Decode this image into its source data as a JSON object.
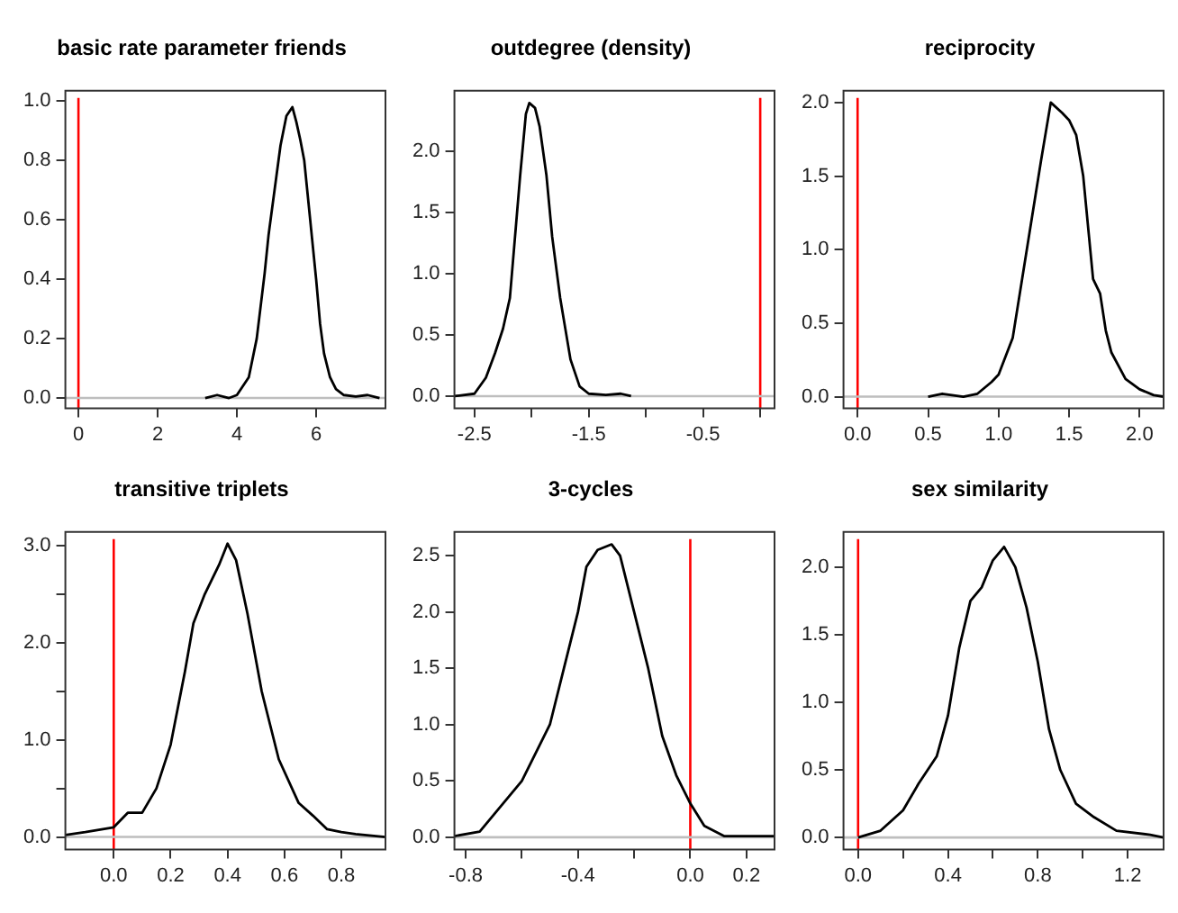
{
  "chart_data": [
    {
      "type": "line",
      "title": "basic rate parameter friends",
      "color": "#000000",
      "x": [
        3.2,
        3.5,
        3.8,
        4.0,
        4.3,
        4.5,
        4.7,
        4.8,
        5.0,
        5.1,
        5.25,
        5.4,
        5.5,
        5.6,
        5.7,
        5.85,
        6.0,
        6.1,
        6.2,
        6.35,
        6.5,
        6.7,
        7.0,
        7.3,
        7.6
      ],
      "values": [
        0,
        0.01,
        0,
        0.01,
        0.07,
        0.2,
        0.42,
        0.55,
        0.75,
        0.85,
        0.95,
        0.98,
        0.93,
        0.87,
        0.8,
        0.6,
        0.4,
        0.25,
        0.15,
        0.07,
        0.03,
        0.01,
        0.005,
        0.01,
        0
      ],
      "xlim": [
        -0.33,
        7.75
      ],
      "ylim": [
        -0.035,
        1.035
      ],
      "xticks": [
        0,
        2,
        4,
        6
      ],
      "yticks": [
        {
          "value": 0,
          "label": "0.0"
        },
        0.2,
        0.4,
        0.6,
        0.8,
        {
          "value": 1,
          "label": "1.0"
        }
      ],
      "ref_lines": [
        {
          "axis": "x",
          "value": 0,
          "color": "#ff0000"
        },
        {
          "axis": "y",
          "value": 0,
          "color": "#bebebe"
        }
      ]
    },
    {
      "type": "line",
      "title": "outdegree (density)",
      "color": "#000000",
      "x": [
        -2.675,
        -2.5,
        -2.4,
        -2.32,
        -2.25,
        -2.19,
        -2.1,
        -2.05,
        -2.02,
        -1.97,
        -1.93,
        -1.87,
        -1.82,
        -1.75,
        -1.66,
        -1.58,
        -1.5,
        -1.35,
        -1.22,
        -1.13
      ],
      "values": [
        0,
        0.02,
        0.15,
        0.35,
        0.55,
        0.8,
        1.8,
        2.3,
        2.39,
        2.35,
        2.2,
        1.8,
        1.3,
        0.8,
        0.3,
        0.08,
        0.02,
        0.01,
        0.02,
        0
      ],
      "xlim": [
        -2.675,
        0.125
      ],
      "ylim": [
        -0.1,
        2.49
      ],
      "xticks": [
        -2.5,
        {
          "value": -2,
          "label": null
        },
        -1.5,
        {
          "value": -1,
          "label": null
        },
        -0.5,
        {
          "value": 0,
          "label": null
        }
      ],
      "yticks": [
        {
          "value": 0,
          "label": "0.0"
        },
        0.5,
        {
          "value": 1,
          "label": "1.0"
        },
        1.5,
        {
          "value": 2,
          "label": "2.0"
        }
      ],
      "ref_lines": [
        {
          "axis": "x",
          "value": 0,
          "color": "#ff0000"
        },
        {
          "axis": "y",
          "value": 0,
          "color": "#bebebe"
        }
      ]
    },
    {
      "type": "line",
      "title": "reciprocity",
      "color": "#000000",
      "x": [
        0.5,
        0.6,
        0.75,
        0.85,
        0.95,
        1.0,
        1.1,
        1.2,
        1.3,
        1.37,
        1.45,
        1.5,
        1.55,
        1.6,
        1.64,
        1.67,
        1.72,
        1.76,
        1.8,
        1.9,
        2.0,
        2.1,
        2.17
      ],
      "values": [
        0,
        0.02,
        0,
        0.02,
        0.1,
        0.15,
        0.4,
        1.0,
        1.6,
        2.0,
        1.93,
        1.88,
        1.78,
        1.5,
        1.1,
        0.8,
        0.7,
        0.45,
        0.3,
        0.12,
        0.05,
        0.01,
        0
      ],
      "xlim": [
        -0.1,
        2.17
      ],
      "ylim": [
        -0.08,
        2.08
      ],
      "xticks": [
        {
          "value": 0,
          "label": "0.0"
        },
        0.5,
        {
          "value": 1,
          "label": "1.0"
        },
        1.5,
        {
          "value": 2,
          "label": "2.0"
        }
      ],
      "yticks": [
        {
          "value": 0,
          "label": "0.0"
        },
        0.5,
        {
          "value": 1,
          "label": "1.0"
        },
        1.5,
        {
          "value": 2,
          "label": "2.0"
        }
      ],
      "ref_lines": [
        {
          "axis": "x",
          "value": 0,
          "color": "#ff0000"
        },
        {
          "axis": "y",
          "value": 0,
          "color": "#bebebe"
        }
      ]
    },
    {
      "type": "line",
      "title": "transitive triplets",
      "color": "#000000",
      "x": [
        -0.17,
        -0.1,
        0.0,
        0.05,
        0.1,
        0.15,
        0.2,
        0.25,
        0.28,
        0.32,
        0.37,
        0.4,
        0.43,
        0.47,
        0.52,
        0.58,
        0.65,
        0.7,
        0.75,
        0.8,
        0.85,
        0.955
      ],
      "values": [
        0.02,
        0.05,
        0.1,
        0.25,
        0.25,
        0.5,
        0.95,
        1.7,
        2.2,
        2.5,
        2.8,
        3.02,
        2.85,
        2.3,
        1.5,
        0.8,
        0.35,
        0.22,
        0.08,
        0.05,
        0.03,
        0
      ],
      "xlim": [
        -0.17,
        0.955
      ],
      "ylim": [
        -0.13,
        3.14
      ],
      "xticks": [
        {
          "value": 0,
          "label": "0.0"
        },
        0.2,
        0.4,
        0.6,
        0.8
      ],
      "yticks": [
        {
          "value": 0,
          "label": "0.0"
        },
        {
          "value": 0.5,
          "label": null
        },
        {
          "value": 1,
          "label": "1.0"
        },
        {
          "value": 1.5,
          "label": null
        },
        {
          "value": 2,
          "label": "2.0"
        },
        {
          "value": 2.5,
          "label": null
        },
        {
          "value": 3,
          "label": "3.0"
        }
      ],
      "ref_lines": [
        {
          "axis": "x",
          "value": 0,
          "color": "#ff0000"
        },
        {
          "axis": "y",
          "value": 0,
          "color": "#bebebe"
        }
      ]
    },
    {
      "type": "line",
      "title": "3-cycles",
      "color": "#000000",
      "x": [
        -0.84,
        -0.75,
        -0.7,
        -0.6,
        -0.5,
        -0.45,
        -0.4,
        -0.37,
        -0.33,
        -0.28,
        -0.25,
        -0.2,
        -0.15,
        -0.1,
        -0.05,
        0.0,
        0.05,
        0.12,
        0.2,
        0.3
      ],
      "values": [
        0.01,
        0.05,
        0.2,
        0.5,
        1.0,
        1.5,
        2.0,
        2.4,
        2.55,
        2.6,
        2.5,
        2.0,
        1.5,
        0.9,
        0.55,
        0.3,
        0.1,
        0.01,
        0.01,
        0.01
      ],
      "xlim": [
        -0.84,
        0.3
      ],
      "ylim": [
        -0.11,
        2.71
      ],
      "xticks": [
        -0.8,
        {
          "value": -0.6,
          "label": null
        },
        -0.4,
        {
          "value": -0.2,
          "label": null
        },
        {
          "value": 0,
          "label": "0.0"
        },
        0.2
      ],
      "yticks": [
        {
          "value": 0,
          "label": "0.0"
        },
        0.5,
        {
          "value": 1,
          "label": "1.0"
        },
        1.5,
        {
          "value": 2,
          "label": "2.0"
        },
        2.5
      ],
      "ref_lines": [
        {
          "axis": "x",
          "value": 0,
          "color": "#ff0000"
        },
        {
          "axis": "y",
          "value": 0,
          "color": "#bebebe"
        }
      ]
    },
    {
      "type": "line",
      "title": "sex similarity",
      "color": "#000000",
      "x": [
        0.0,
        0.1,
        0.2,
        0.27,
        0.35,
        0.4,
        0.45,
        0.5,
        0.55,
        0.6,
        0.65,
        0.7,
        0.75,
        0.8,
        0.85,
        0.9,
        0.97,
        1.05,
        1.15,
        1.3,
        1.36
      ],
      "values": [
        0,
        0.05,
        0.2,
        0.4,
        0.6,
        0.9,
        1.4,
        1.75,
        1.85,
        2.05,
        2.15,
        2.0,
        1.7,
        1.3,
        0.8,
        0.5,
        0.25,
        0.15,
        0.05,
        0.02,
        0
      ],
      "xlim": [
        -0.065,
        1.36
      ],
      "ylim": [
        -0.09,
        2.26
      ],
      "xticks": [
        {
          "value": 0,
          "label": "0.0"
        },
        {
          "value": 0.2,
          "label": null
        },
        0.4,
        {
          "value": 0.6,
          "label": null
        },
        0.8,
        {
          "value": 1,
          "label": null
        },
        1.2
      ],
      "yticks": [
        {
          "value": 0,
          "label": "0.0"
        },
        0.5,
        {
          "value": 1,
          "label": "1.0"
        },
        1.5,
        {
          "value": 2,
          "label": "2.0"
        }
      ],
      "ref_lines": [
        {
          "axis": "x",
          "value": 0,
          "color": "#ff0000"
        },
        {
          "axis": "y",
          "value": 0,
          "color": "#bebebe"
        }
      ]
    }
  ]
}
